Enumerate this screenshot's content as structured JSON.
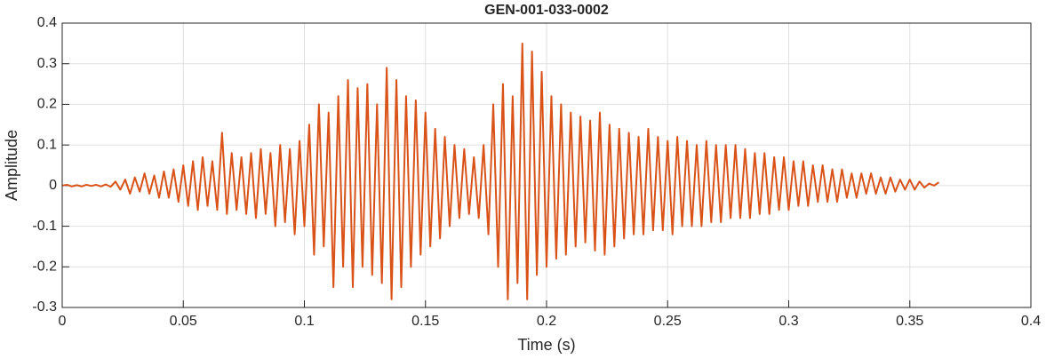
{
  "chart_data": {
    "type": "line",
    "title": "GEN-001-033-0002",
    "xlabel": "Time (s)",
    "ylabel": "Amplitude",
    "color": "#d95319",
    "grid": true,
    "xlim": [
      0,
      0.4
    ],
    "xticks": [
      0,
      0.05,
      0.1,
      0.15,
      0.2,
      0.25,
      0.3,
      0.35,
      0.4
    ],
    "ylim": [
      -0.3,
      0.4
    ],
    "yticks": [
      -0.3,
      -0.2,
      -0.1,
      0,
      0.1,
      0.2,
      0.3,
      0.4
    ],
    "x": [
      0,
      0.002,
      0.004,
      0.006,
      0.008,
      0.01,
      0.012,
      0.014,
      0.016,
      0.018,
      0.02,
      0.022,
      0.024,
      0.026,
      0.028,
      0.03,
      0.032,
      0.034,
      0.036,
      0.038,
      0.04,
      0.042,
      0.044,
      0.046,
      0.048,
      0.05,
      0.052,
      0.054,
      0.056,
      0.058,
      0.06,
      0.062,
      0.064,
      0.066,
      0.068,
      0.07,
      0.072,
      0.074,
      0.076,
      0.078,
      0.08,
      0.082,
      0.084,
      0.086,
      0.088,
      0.09,
      0.092,
      0.094,
      0.096,
      0.098,
      0.1,
      0.102,
      0.104,
      0.106,
      0.108,
      0.11,
      0.112,
      0.114,
      0.116,
      0.118,
      0.12,
      0.122,
      0.124,
      0.126,
      0.128,
      0.13,
      0.132,
      0.134,
      0.136,
      0.138,
      0.14,
      0.142,
      0.144,
      0.146,
      0.148,
      0.15,
      0.152,
      0.154,
      0.156,
      0.158,
      0.16,
      0.162,
      0.164,
      0.166,
      0.168,
      0.17,
      0.172,
      0.174,
      0.176,
      0.178,
      0.18,
      0.182,
      0.184,
      0.186,
      0.188,
      0.19,
      0.192,
      0.194,
      0.196,
      0.198,
      0.2,
      0.202,
      0.204,
      0.206,
      0.208,
      0.21,
      0.212,
      0.214,
      0.216,
      0.218,
      0.22,
      0.222,
      0.224,
      0.226,
      0.228,
      0.23,
      0.232,
      0.234,
      0.236,
      0.238,
      0.24,
      0.242,
      0.244,
      0.246,
      0.248,
      0.25,
      0.252,
      0.254,
      0.256,
      0.258,
      0.26,
      0.262,
      0.264,
      0.266,
      0.268,
      0.27,
      0.272,
      0.274,
      0.276,
      0.278,
      0.28,
      0.282,
      0.284,
      0.286,
      0.288,
      0.29,
      0.292,
      0.294,
      0.296,
      0.298,
      0.3,
      0.302,
      0.304,
      0.306,
      0.308,
      0.31,
      0.312,
      0.314,
      0.316,
      0.318,
      0.32,
      0.322,
      0.324,
      0.326,
      0.328,
      0.33,
      0.332,
      0.334,
      0.336,
      0.338,
      0.34,
      0.342,
      0.344,
      0.346,
      0.348,
      0.35,
      0.352,
      0.354,
      0.356,
      0.358,
      0.36,
      0.362
    ],
    "values": [
      0,
      0.002,
      -0.002,
      0.001,
      -0.002,
      0.002,
      -0.001,
      0.002,
      -0.002,
      0.003,
      -0.003,
      0.01,
      -0.01,
      0.015,
      -0.02,
      0.02,
      -0.015,
      0.03,
      -0.02,
      0.025,
      -0.03,
      0.035,
      -0.03,
      0.04,
      -0.04,
      0.05,
      -0.05,
      0.06,
      -0.06,
      0.07,
      -0.05,
      0.06,
      -0.06,
      0.13,
      -0.07,
      0.08,
      -0.06,
      0.07,
      -0.07,
      0.08,
      -0.08,
      0.09,
      -0.07,
      0.08,
      -0.1,
      0.1,
      -0.09,
      0.09,
      -0.12,
      0.11,
      -0.1,
      0.15,
      -0.17,
      0.2,
      -0.15,
      0.18,
      -0.25,
      0.22,
      -0.2,
      0.26,
      -0.25,
      0.24,
      -0.2,
      0.25,
      -0.22,
      0.2,
      -0.24,
      0.29,
      -0.28,
      0.26,
      -0.25,
      0.22,
      -0.2,
      0.21,
      -0.17,
      0.18,
      -0.15,
      0.14,
      -0.13,
      0.12,
      -0.1,
      0.1,
      -0.08,
      0.09,
      -0.07,
      0.07,
      -0.08,
      0.1,
      -0.12,
      0.2,
      -0.2,
      0.25,
      -0.28,
      0.22,
      -0.24,
      0.35,
      -0.28,
      0.33,
      -0.22,
      0.28,
      -0.2,
      0.22,
      -0.18,
      0.2,
      -0.17,
      0.18,
      -0.15,
      0.17,
      -0.14,
      0.16,
      -0.16,
      0.18,
      -0.17,
      0.15,
      -0.15,
      0.14,
      -0.13,
      0.13,
      -0.12,
      0.12,
      -0.12,
      0.14,
      -0.11,
      0.12,
      -0.11,
      0.11,
      -0.12,
      0.12,
      -0.1,
      0.11,
      -0.1,
      0.1,
      -0.1,
      0.11,
      -0.09,
      0.1,
      -0.09,
      0.1,
      -0.08,
      0.1,
      -0.08,
      0.09,
      -0.08,
      0.08,
      -0.07,
      0.08,
      -0.07,
      0.07,
      -0.06,
      0.07,
      -0.06,
      0.06,
      -0.05,
      0.06,
      -0.05,
      0.05,
      -0.04,
      0.05,
      -0.04,
      0.04,
      -0.04,
      0.04,
      -0.03,
      0.03,
      -0.03,
      0.03,
      -0.02,
      0.03,
      -0.02,
      0.02,
      -0.02,
      0.02,
      -0.015,
      0.015,
      -0.01,
      0.015,
      -0.01,
      0.01,
      -0.005,
      0.005,
      0,
      0.008
    ]
  }
}
